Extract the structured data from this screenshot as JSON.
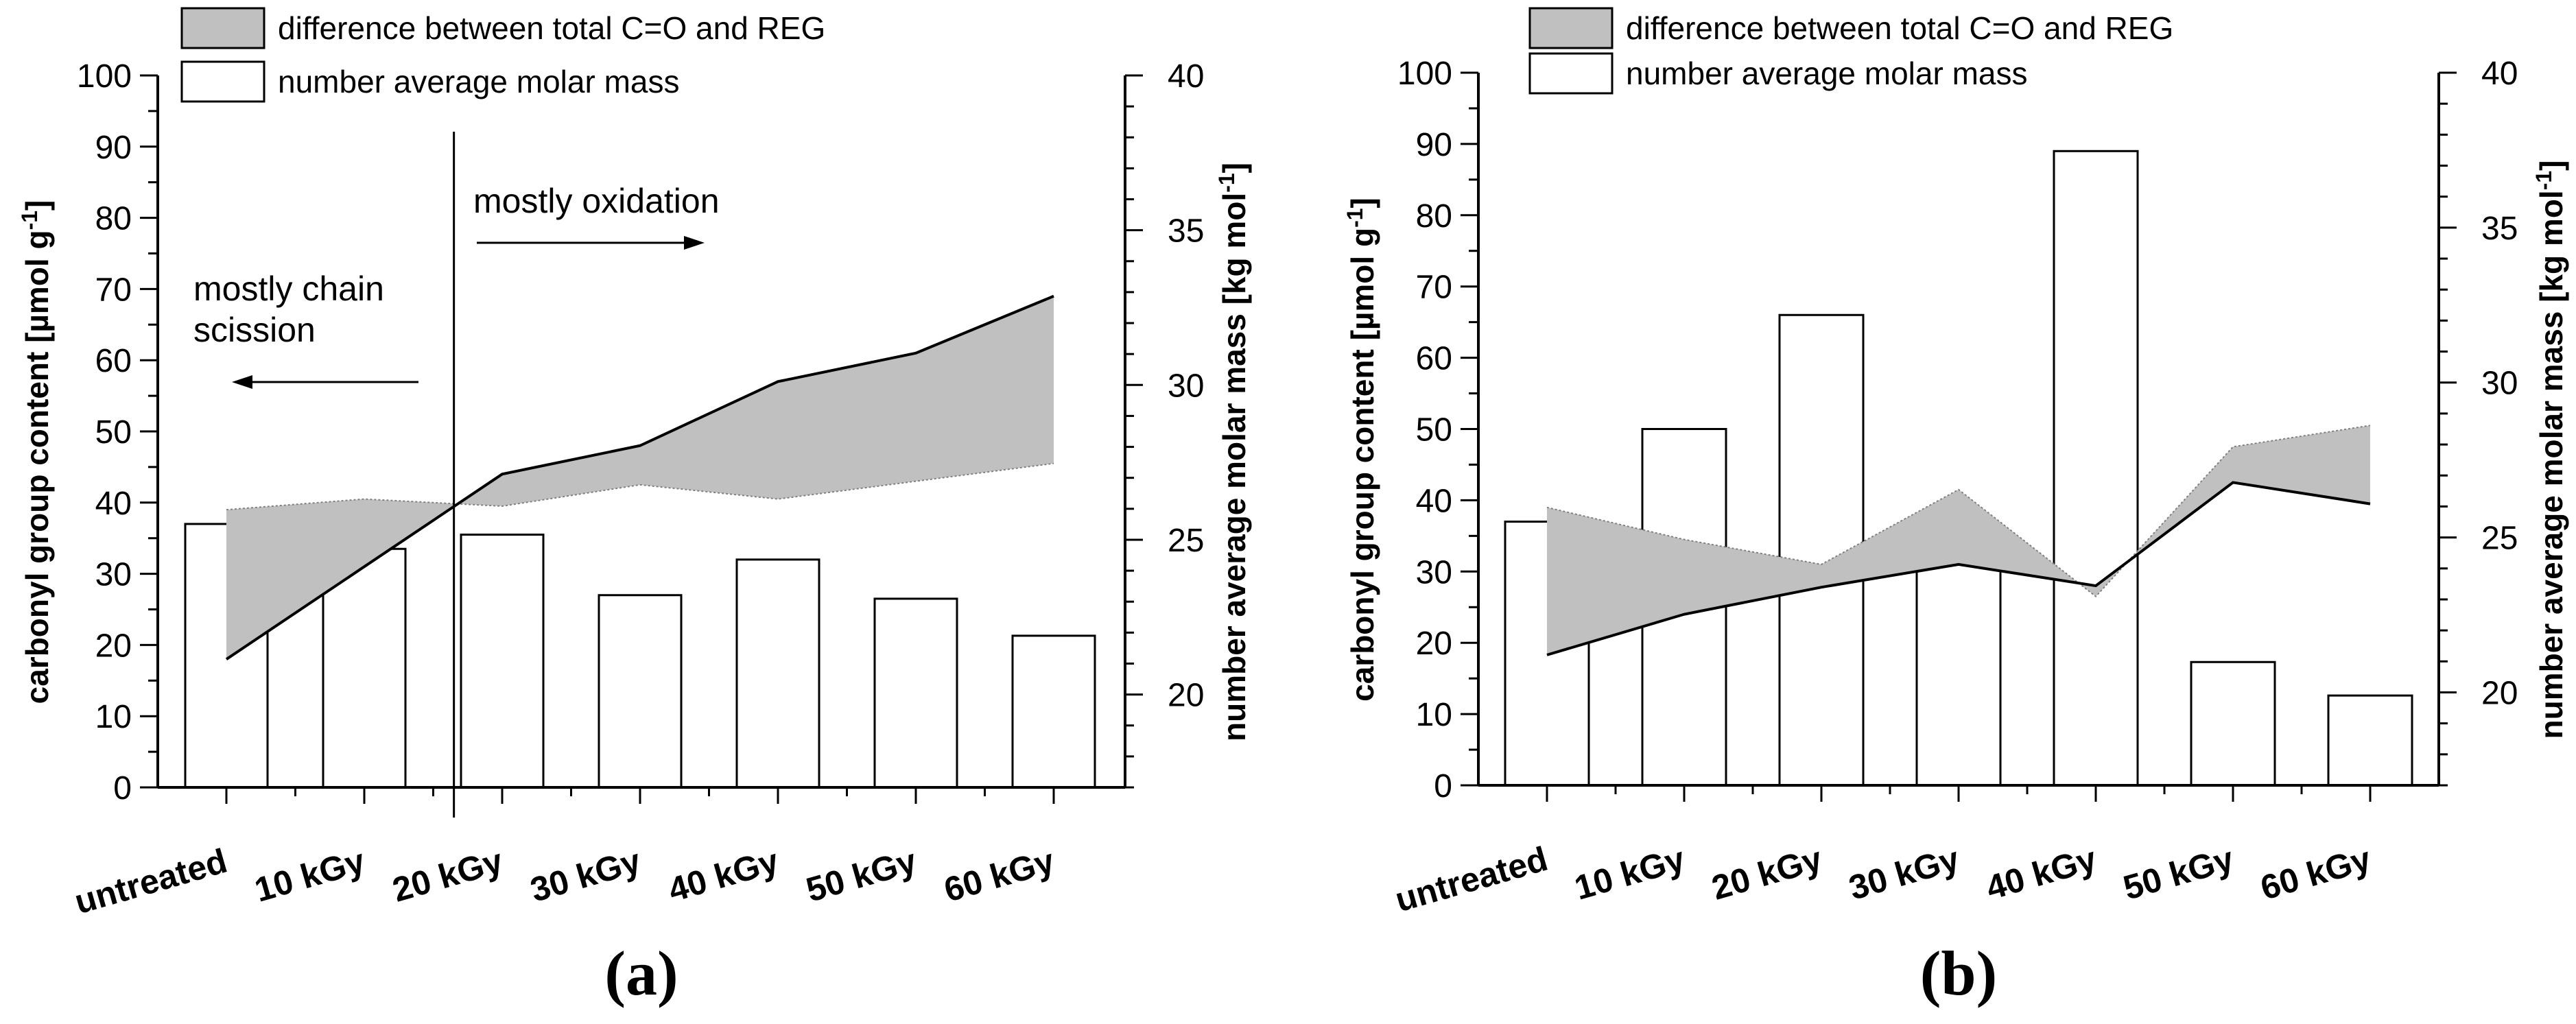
{
  "chart_data": [
    {
      "panel_label": "(a)",
      "type": "bar+line+area",
      "categories": [
        "untreated",
        "10 kGy",
        "20 kGy",
        "30 kGy",
        "40 kGy",
        "50 kGy",
        "60 kGy"
      ],
      "left_axis": {
        "label": "carbonyl group content [µmol g",
        "label_sup": "-1",
        "label_end": "]",
        "range": [
          0,
          100
        ],
        "major_ticks": [
          0,
          10,
          20,
          30,
          40,
          50,
          60,
          70,
          80,
          90,
          100
        ]
      },
      "right_axis": {
        "label": "number average molar mass [kg mol",
        "label_sup": "-1",
        "label_end": "]",
        "range": [
          17,
          40
        ],
        "major_ticks": [
          20,
          25,
          30,
          35,
          40
        ]
      },
      "series": [
        {
          "name": "number average molar mass",
          "type": "bar",
          "axis": "left",
          "values": [
            37,
            33.5,
            35.5,
            27,
            32,
            26.5,
            21.3
          ]
        },
        {
          "name": "total C=O",
          "type": "line",
          "axis": "left",
          "values": [
            18,
            31,
            44,
            48,
            57,
            61,
            69
          ]
        },
        {
          "name": "REG",
          "type": "dotted-line",
          "axis": "left",
          "values": [
            39,
            40.5,
            39.5,
            42.5,
            40.5,
            43,
            45.5
          ]
        }
      ],
      "legend": [
        {
          "label": "difference between total C=O and REG",
          "swatch": "filled"
        },
        {
          "label": "number average molar mass",
          "swatch": "empty"
        }
      ],
      "divider_after_index": 1.65,
      "annotations": [
        {
          "text_lines": [
            "mostly chain",
            "scission"
          ],
          "arrow": "left"
        },
        {
          "text_lines": [
            "mostly oxidation"
          ],
          "arrow": "right"
        }
      ]
    },
    {
      "panel_label": "(b)",
      "type": "bar+line+area",
      "categories": [
        "untreated",
        "10 kGy",
        "20 kGy",
        "30 kGy",
        "40 kGy",
        "50 kGy",
        "60 kGy"
      ],
      "left_axis": {
        "label": "carbonyl group content [µmol g",
        "label_sup": "-1",
        "label_end": "]",
        "range": [
          0,
          100
        ],
        "major_ticks": [
          0,
          10,
          20,
          30,
          40,
          50,
          60,
          70,
          80,
          90,
          100
        ]
      },
      "right_axis": {
        "label": "number average molar mass [kg mol",
        "label_sup": "-1",
        "label_end": "]",
        "range": [
          17,
          40
        ],
        "major_ticks": [
          20,
          25,
          30,
          35,
          40
        ]
      },
      "series": [
        {
          "name": "number average molar mass",
          "type": "bar",
          "axis": "left",
          "values": [
            37,
            50,
            66,
            31,
            89,
            17.3,
            12.6
          ]
        },
        {
          "name": "total C=O",
          "type": "line",
          "axis": "left",
          "values": [
            18.3,
            24,
            27.8,
            31,
            28,
            42.5,
            39.5
          ]
        },
        {
          "name": "REG",
          "type": "dotted-line",
          "axis": "left",
          "values": [
            39,
            34.5,
            31,
            41.5,
            26.5,
            47.5,
            50.5
          ]
        }
      ],
      "legend": [
        {
          "label": "difference between total C=O and REG",
          "swatch": "filled"
        },
        {
          "label": "number average molar mass",
          "swatch": "empty"
        }
      ]
    }
  ]
}
